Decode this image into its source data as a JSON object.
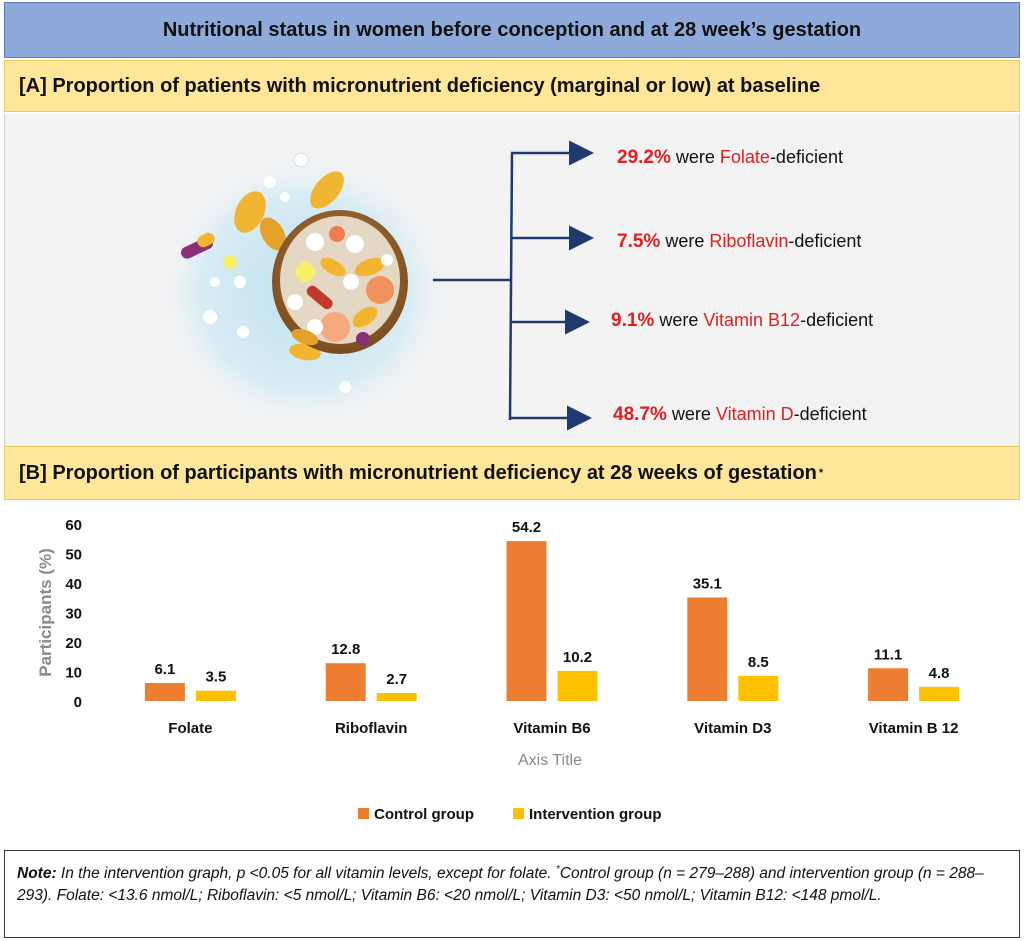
{
  "title": "Nutritional status in women before conception and at 28 week’s gestation",
  "section_a": {
    "header": "[A] Proportion of patients with micronutrient deficiency (marginal or low) at baseline",
    "stats": [
      {
        "pct": "29.2%",
        "pre": " were ",
        "nutrient": "Folate",
        "post": "-deficient"
      },
      {
        "pct": "7.5%",
        "pre": " were ",
        "nutrient": "Riboflavin",
        "post": "-deficient"
      },
      {
        "pct": "9.1%",
        "pre": " were ",
        "nutrient": "Vitamin B12",
        "post": "-deficient"
      },
      {
        "pct": "48.7%",
        "pre": " were ",
        "nutrient": "Vitamin D",
        "post": "-deficient"
      }
    ]
  },
  "section_b": {
    "header": "[B] Proportion of participants with micronutrient deficiency at 28 weeks of gestation",
    "header_mark": "*"
  },
  "chart_data": {
    "type": "bar",
    "categories": [
      "Folate",
      "Riboflavin",
      "Vitamin B6",
      "Vitamin D3",
      "Vitamin B 12"
    ],
    "series": [
      {
        "name": "Control group",
        "values": [
          6.1,
          12.8,
          54.2,
          35.1,
          11.1
        ],
        "labels": [
          "6.1",
          "12.8",
          "54.2",
          "35.1",
          "11.1"
        ],
        "color": "#ed7d31"
      },
      {
        "name": "Intervention group",
        "values": [
          3.5,
          2.7,
          10.2,
          8.5,
          4.8
        ],
        "labels": [
          "3.5",
          "2.7",
          "10.2",
          "8.5",
          "4.8"
        ],
        "color": "#ffc000"
      }
    ],
    "ylabel": "Participants (%)",
    "xlabel": "Axis Title",
    "ylim": [
      0,
      60
    ],
    "yticks": [
      "0",
      "10",
      "20",
      "30",
      "40",
      "50",
      "60"
    ],
    "legend": "bottom",
    "grid": false
  },
  "note": {
    "label": "Note:",
    "text1": " In the intervention graph, p <0.05 for all vitamin levels, except for folate. ",
    "mark": "*",
    "text2": "Control group (n = 279–288) and intervention group (n = 288–293). Folate: <13.6 nmol/L; Riboflavin: <5 nmol/L; Vitamin B6: <20 nmol/L; Vitamin D3: <50 nmol/L; Vitamin B12: <148 pmol/L."
  },
  "colors": {
    "title_bg": "#8eaadb",
    "header_bg": "#ffe699",
    "arrow": "#1f3a6e",
    "highlight": "#e21e1e",
    "control": "#ed7d31",
    "intervention": "#ffc000"
  },
  "icons": [
    "pills-bowl-icon",
    "arrow-icon"
  ]
}
